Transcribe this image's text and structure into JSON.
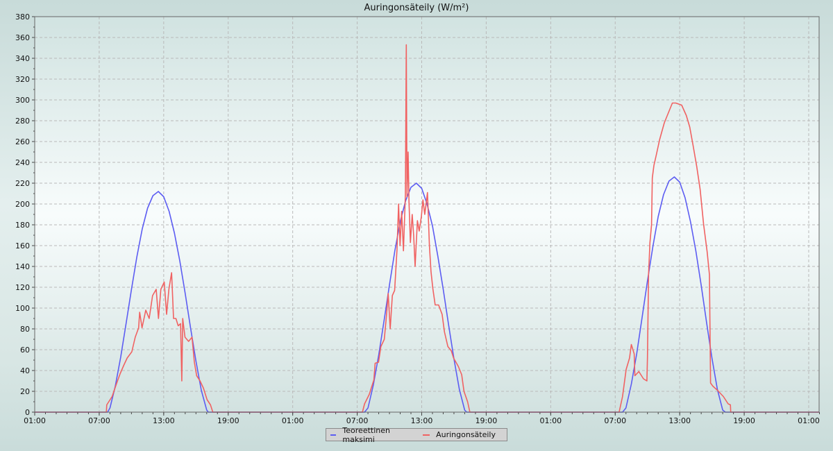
{
  "chart_data": {
    "type": "line",
    "title": "Auringonsäteily (W/m²)",
    "xlabel": "",
    "ylabel": "",
    "ylim": [
      0,
      380
    ],
    "y_ticks": [
      0,
      20,
      40,
      60,
      80,
      100,
      120,
      140,
      160,
      180,
      200,
      220,
      240,
      260,
      280,
      300,
      320,
      340,
      360,
      380
    ],
    "x_ticks": [
      {
        "day": 0,
        "time": "01:00"
      },
      {
        "day": 0,
        "time": "07:00"
      },
      {
        "day": 0,
        "time": "13:00"
      },
      {
        "day": 0,
        "time": "19:00"
      },
      {
        "day": 1,
        "time": "01:00"
      },
      {
        "day": 1,
        "time": "07:00"
      },
      {
        "day": 1,
        "time": "13:00"
      },
      {
        "day": 1,
        "time": "19:00"
      },
      {
        "day": 2,
        "time": "01:00"
      },
      {
        "day": 2,
        "time": "07:00"
      },
      {
        "day": 2,
        "time": "13:00"
      },
      {
        "day": 2,
        "time": "19:00"
      },
      {
        "day": 3,
        "time": "01:00"
      }
    ],
    "xlim": [
      {
        "day": 0,
        "time": "01:00"
      },
      {
        "day": 3,
        "time": "02:00"
      }
    ],
    "grid": true,
    "legend_position": "bottom-center",
    "series": [
      {
        "name": "Teoreettinen maksimi",
        "color": "#5c5cf2",
        "days": [
          {
            "day": 0,
            "points": [
              [
                "01:00",
                0
              ],
              [
                "07:47",
                0
              ],
              [
                "08:00",
                4
              ],
              [
                "08:30",
                25
              ],
              [
                "09:00",
                53
              ],
              [
                "09:30",
                85
              ],
              [
                "10:00",
                118
              ],
              [
                "10:30",
                149
              ],
              [
                "11:00",
                176
              ],
              [
                "11:30",
                196
              ],
              [
                "12:00",
                208
              ],
              [
                "12:30",
                212
              ],
              [
                "13:00",
                207
              ],
              [
                "13:30",
                193
              ],
              [
                "14:00",
                172
              ],
              [
                "14:30",
                145
              ],
              [
                "15:00",
                114
              ],
              [
                "15:30",
                81
              ],
              [
                "16:00",
                49
              ],
              [
                "16:30",
                21
              ],
              [
                "17:00",
                2
              ],
              [
                "17:09",
                0
              ],
              [
                "23:59",
                0
              ]
            ]
          },
          {
            "day": 1,
            "points": [
              [
                "00:00",
                0
              ],
              [
                "07:41",
                0
              ],
              [
                "08:00",
                4
              ],
              [
                "08:30",
                26
              ],
              [
                "09:00",
                55
              ],
              [
                "09:30",
                88
              ],
              [
                "10:00",
                122
              ],
              [
                "10:30",
                155
              ],
              [
                "11:00",
                183
              ],
              [
                "11:30",
                203
              ],
              [
                "12:00",
                216
              ],
              [
                "12:30",
                220
              ],
              [
                "13:00",
                215
              ],
              [
                "13:30",
                200
              ],
              [
                "14:00",
                179
              ],
              [
                "14:30",
                150
              ],
              [
                "15:00",
                118
              ],
              [
                "15:30",
                84
              ],
              [
                "16:00",
                51
              ],
              [
                "16:30",
                22
              ],
              [
                "17:00",
                2
              ],
              [
                "17:11",
                0
              ],
              [
                "23:59",
                0
              ]
            ]
          },
          {
            "day": 2,
            "points": [
              [
                "00:00",
                0
              ],
              [
                "07:41",
                0
              ],
              [
                "08:00",
                4
              ],
              [
                "08:30",
                27
              ],
              [
                "09:00",
                56
              ],
              [
                "09:30",
                91
              ],
              [
                "10:00",
                126
              ],
              [
                "10:30",
                159
              ],
              [
                "11:00",
                188
              ],
              [
                "11:30",
                209
              ],
              [
                "12:00",
                222
              ],
              [
                "12:30",
                226
              ],
              [
                "13:00",
                221
              ],
              [
                "13:30",
                206
              ],
              [
                "14:00",
                183
              ],
              [
                "14:30",
                155
              ],
              [
                "15:00",
                122
              ],
              [
                "15:30",
                86
              ],
              [
                "16:00",
                52
              ],
              [
                "16:30",
                22
              ],
              [
                "17:00",
                2
              ],
              [
                "17:15",
                0
              ],
              [
                "23:59",
                0
              ]
            ]
          },
          {
            "day": 3,
            "points": [
              [
                "00:00",
                0
              ],
              [
                "02:00",
                0
              ]
            ]
          }
        ]
      },
      {
        "name": "Auringonsäteily",
        "color": "#f06262",
        "days": [
          {
            "day": 0,
            "points": [
              [
                "01:00",
                0
              ],
              [
                "07:40",
                0
              ],
              [
                "07:42",
                7
              ],
              [
                "08:12",
                15
              ],
              [
                "08:38",
                28
              ],
              [
                "08:57",
                37
              ],
              [
                "09:17",
                45
              ],
              [
                "09:36",
                52
              ],
              [
                "10:02",
                58
              ],
              [
                "10:21",
                72
              ],
              [
                "10:40",
                81
              ],
              [
                "10:46",
                96
              ],
              [
                "10:59",
                81
              ],
              [
                "11:20",
                98
              ],
              [
                "11:39",
                90
              ],
              [
                "11:58",
                112
              ],
              [
                "12:18",
                118
              ],
              [
                "12:31",
                90
              ],
              [
                "12:44",
                118
              ],
              [
                "13:03",
                125
              ],
              [
                "13:16",
                94
              ],
              [
                "13:29",
                118
              ],
              [
                "13:44",
                134
              ],
              [
                "13:55",
                90
              ],
              [
                "14:08",
                90
              ],
              [
                "14:21",
                83
              ],
              [
                "14:34",
                85
              ],
              [
                "14:41",
                30
              ],
              [
                "14:46",
                90
              ],
              [
                "14:59",
                72
              ],
              [
                "15:19",
                68
              ],
              [
                "15:38",
                72
              ],
              [
                "15:51",
                48
              ],
              [
                "16:04",
                35
              ],
              [
                "16:23",
                30
              ],
              [
                "16:42",
                23
              ],
              [
                "17:02",
                12
              ],
              [
                "17:21",
                7
              ],
              [
                "17:34",
                0
              ],
              [
                "23:59",
                0
              ]
            ]
          },
          {
            "day": 1,
            "points": [
              [
                "00:00",
                0
              ],
              [
                "07:29",
                0
              ],
              [
                "07:41",
                8
              ],
              [
                "08:07",
                17
              ],
              [
                "08:33",
                31
              ],
              [
                "08:40",
                47
              ],
              [
                "08:59",
                48
              ],
              [
                "09:12",
                63
              ],
              [
                "09:31",
                70
              ],
              [
                "09:44",
                94
              ],
              [
                "09:53",
                114
              ],
              [
                "10:04",
                80
              ],
              [
                "10:16",
                112
              ],
              [
                "10:29",
                117
              ],
              [
                "10:42",
                156
              ],
              [
                "10:51",
                200
              ],
              [
                "10:59",
                160
              ],
              [
                "11:08",
                193
              ],
              [
                "11:18",
                155
              ],
              [
                "11:29",
                209
              ],
              [
                "11:34",
                353
              ],
              [
                "11:38",
                207
              ],
              [
                "11:44",
                250
              ],
              [
                "11:49",
                202
              ],
              [
                "11:57",
                163
              ],
              [
                "12:07",
                190
              ],
              [
                "12:15",
                170
              ],
              [
                "12:23",
                140
              ],
              [
                "12:36",
                184
              ],
              [
                "12:46",
                174
              ],
              [
                "12:58",
                188
              ],
              [
                "13:07",
                204
              ],
              [
                "13:17",
                190
              ],
              [
                "13:32",
                211
              ],
              [
                "13:43",
                160
              ],
              [
                "13:52",
                135
              ],
              [
                "14:02",
                119
              ],
              [
                "14:15",
                103
              ],
              [
                "14:34",
                103
              ],
              [
                "14:54",
                94
              ],
              [
                "15:07",
                77
              ],
              [
                "15:26",
                63
              ],
              [
                "15:45",
                59
              ],
              [
                "15:58",
                52
              ],
              [
                "16:24",
                44
              ],
              [
                "16:43",
                36
              ],
              [
                "16:56",
                20
              ],
              [
                "17:16",
                10
              ],
              [
                "17:29",
                0
              ],
              [
                "23:59",
                0
              ]
            ]
          },
          {
            "day": 2,
            "points": [
              [
                "00:00",
                0
              ],
              [
                "07:22",
                0
              ],
              [
                "07:41",
                15
              ],
              [
                "08:01",
                41
              ],
              [
                "08:20",
                52
              ],
              [
                "08:30",
                65
              ],
              [
                "08:46",
                56
              ],
              [
                "08:50",
                35
              ],
              [
                "09:12",
                39
              ],
              [
                "09:38",
                32
              ],
              [
                "09:57",
                30
              ],
              [
                "10:00",
                52
              ],
              [
                "10:06",
                132
              ],
              [
                "10:14",
                163
              ],
              [
                "10:23",
                180
              ],
              [
                "10:27",
                225
              ],
              [
                "10:36",
                237
              ],
              [
                "10:49",
                247
              ],
              [
                "11:08",
                262
              ],
              [
                "11:34",
                278
              ],
              [
                "12:00",
                289
              ],
              [
                "12:19",
                297
              ],
              [
                "12:38",
                297
              ],
              [
                "13:11",
                295
              ],
              [
                "13:37",
                285
              ],
              [
                "13:56",
                274
              ],
              [
                "14:15",
                256
              ],
              [
                "14:35",
                236
              ],
              [
                "14:54",
                214
              ],
              [
                "15:13",
                181
              ],
              [
                "15:33",
                154
              ],
              [
                "15:46",
                132
              ],
              [
                "15:52",
                28
              ],
              [
                "16:05",
                25
              ],
              [
                "16:31",
                21
              ],
              [
                "17:04",
                15
              ],
              [
                "17:30",
                8
              ],
              [
                "17:43",
                7
              ],
              [
                "17:45",
                0
              ],
              [
                "23:59",
                0
              ]
            ]
          },
          {
            "day": 3,
            "points": [
              [
                "00:00",
                0
              ],
              [
                "02:00",
                0
              ]
            ]
          }
        ]
      }
    ]
  }
}
